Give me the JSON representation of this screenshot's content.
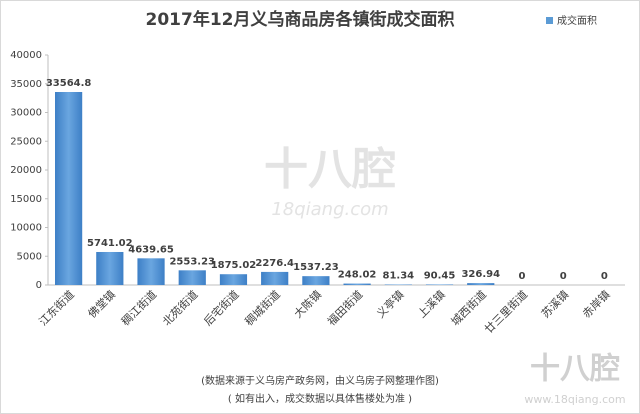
{
  "chart_data": {
    "type": "bar",
    "title": "2017年12月义乌商品房各镇街成交面积",
    "categories": [
      "江东街道",
      "佛堂镇",
      "稠江街道",
      "北苑街道",
      "后宅街道",
      "稠城街道",
      "大陈镇",
      "福田街道",
      "义亭镇",
      "上溪镇",
      "城西街道",
      "廿三里街道",
      "苏溪镇",
      "赤岸镇"
    ],
    "series": [
      {
        "name": "成交面积",
        "color": "#5b9bd5",
        "values": [
          33564.8,
          5741.02,
          4639.65,
          2553.23,
          1875.02,
          2276.4,
          1537.23,
          248.02,
          81.34,
          90.45,
          326.94,
          0,
          0,
          0
        ]
      }
    ],
    "ylim": [
      0,
      40000
    ],
    "yticks": [
      0,
      5000,
      10000,
      15000,
      20000,
      25000,
      30000,
      35000,
      40000
    ],
    "grid": false,
    "legend": "top-right",
    "notes": [
      "(数据来源于义乌房产政务网，由义乌房子网整理作图)",
      "( 如有出入，成交数据以具体售楼处为准 )"
    ],
    "watermarks": [
      "十八腔",
      "18qiang.com",
      "十八腔",
      "www.18qiang.com"
    ]
  }
}
